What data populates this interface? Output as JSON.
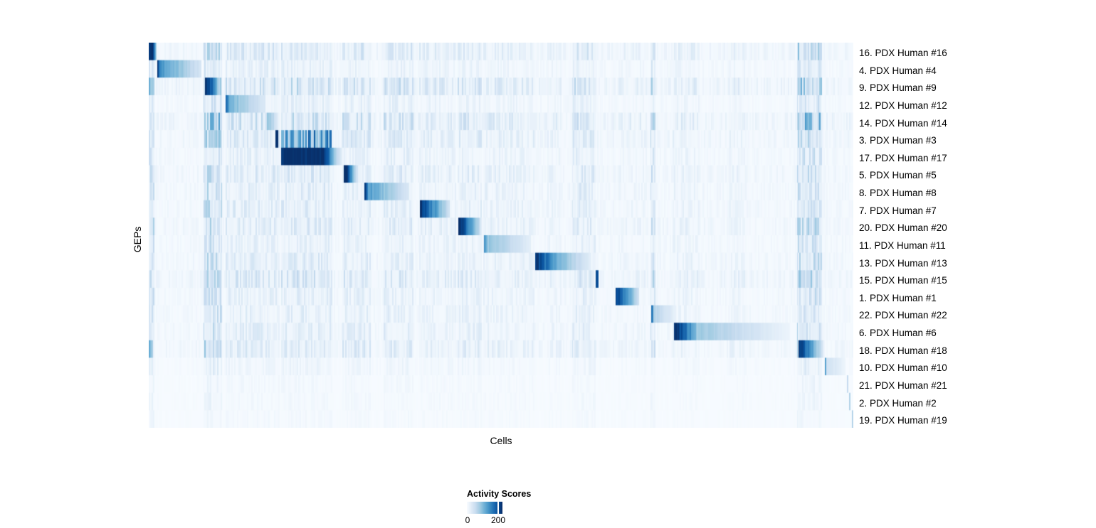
{
  "axes": {
    "y_label": "GEPs",
    "x_label": "Cells"
  },
  "colors": {
    "page_background": "#ffffff",
    "text": "#000000",
    "heatmap_max": "#08306b",
    "colormap": [
      "#f7fbff",
      "#deebf7",
      "#c6dbef",
      "#9ecae1",
      "#6baed6",
      "#4292c6",
      "#2171b5",
      "#08519c",
      "#08306b"
    ]
  },
  "chart_data": {
    "type": "heatmap",
    "title": "",
    "xlabel": "Cells",
    "ylabel": "GEPs",
    "value_name": "Activity Scores",
    "value_range": [
      0,
      230
    ],
    "grid": false,
    "extent": {
      "cols": 990,
      "rows": 22
    },
    "base_intensity": 0.045,
    "legend": {
      "title": "Activity Scores",
      "position": "bottom",
      "tick_labels": [
        "0",
        "200"
      ],
      "tick_positions": [
        0,
        0.88
      ],
      "tick_values": [
        0,
        200
      ]
    },
    "bands": [
      [
        0,
        8,
        0.28
      ],
      [
        77,
        103,
        0.3
      ],
      [
        108,
        184,
        0.15
      ],
      [
        186,
        258,
        0.17
      ],
      [
        272,
        312,
        0.15
      ],
      [
        330,
        372,
        0.15
      ],
      [
        380,
        432,
        0.11
      ],
      [
        434,
        468,
        0.13
      ],
      [
        470,
        542,
        0.1
      ],
      [
        560,
        580,
        0.08
      ],
      [
        595,
        628,
        0.15
      ],
      [
        660,
        700,
        0.07
      ],
      [
        705,
        712,
        0.22
      ],
      [
        736,
        774,
        0.09
      ],
      [
        815,
        840,
        0.08
      ],
      [
        911,
        946,
        0.3
      ]
    ],
    "rows": [
      {
        "label": "16. PDX Human #16",
        "noise": 0.8,
        "segments": [
          [
            0,
            5,
            1,
            1,
            "solid"
          ],
          [
            5,
            11,
            1,
            0.2,
            "fade"
          ]
        ]
      },
      {
        "label": "4. PDX Human #4",
        "noise": 0.45,
        "segments": [
          [
            12,
            16,
            0.95,
            0.65,
            "fade"
          ],
          [
            16,
            74,
            0.6,
            0.16,
            "fade"
          ]
        ]
      },
      {
        "label": "9. PDX Human #9",
        "noise": 1.0,
        "segments": [
          [
            0,
            6,
            0.5,
            0.2,
            "fade"
          ],
          [
            79,
            89,
            0.95,
            0.75,
            "fade"
          ],
          [
            89,
            101,
            0.75,
            0.18,
            "fade"
          ]
        ]
      },
      {
        "label": "12. PDX Human #12",
        "noise": 0.45,
        "segments": [
          [
            108,
            113,
            0.75,
            0.5,
            "fade"
          ],
          [
            113,
            164,
            0.48,
            0.13,
            "fade"
          ]
        ]
      },
      {
        "label": "14. PDX Human #14",
        "noise": 1.0,
        "segments": [
          [
            166,
            172,
            0.45,
            0.3,
            "fade"
          ],
          [
            172,
            182,
            0.3,
            0.1,
            "fade"
          ]
        ]
      },
      {
        "label": "3. PDX Human #3",
        "noise": 0.75,
        "segments": [
          [
            178,
            182,
            1,
            1,
            "solid"
          ],
          [
            186,
            257,
            0.85,
            0.2,
            "stripes"
          ]
        ]
      },
      {
        "label": "17. PDX Human #17",
        "noise": 0.5,
        "segments": [
          [
            186,
            247,
            1,
            1,
            "solid"
          ],
          [
            247,
            263,
            1,
            0.3,
            "fade"
          ],
          [
            263,
            272,
            0.3,
            0.08,
            "fade"
          ]
        ]
      },
      {
        "label": "5. PDX Human #5",
        "noise": 0.7,
        "segments": [
          [
            274,
            280,
            1,
            0.85,
            "fade"
          ],
          [
            280,
            292,
            0.85,
            0.15,
            "fade"
          ]
        ]
      },
      {
        "label": "8. PDX Human #8",
        "noise": 0.6,
        "segments": [
          [
            303,
            308,
            0.95,
            0.7,
            "fade"
          ],
          [
            308,
            366,
            0.58,
            0.13,
            "fade"
          ]
        ]
      },
      {
        "label": "7. PDX Human #7",
        "noise": 0.6,
        "segments": [
          [
            381,
            388,
            1,
            0.85,
            "fade"
          ],
          [
            388,
            423,
            0.85,
            0.18,
            "fade"
          ]
        ]
      },
      {
        "label": "20. PDX Human #20",
        "noise": 0.65,
        "segments": [
          [
            435,
            442,
            1,
            0.88,
            "fade"
          ],
          [
            442,
            466,
            0.88,
            0.2,
            "fade"
          ]
        ]
      },
      {
        "label": "11. PDX Human #11",
        "noise": 0.5,
        "segments": [
          [
            471,
            476,
            0.6,
            0.42,
            "fade"
          ],
          [
            476,
            537,
            0.4,
            0.1,
            "fade"
          ]
        ]
      },
      {
        "label": "13. PDX Human #13",
        "noise": 0.6,
        "segments": [
          [
            543,
            552,
            1,
            0.88,
            "fade"
          ],
          [
            552,
            577,
            0.85,
            0.45,
            "fade"
          ],
          [
            577,
            621,
            0.45,
            0.1,
            "fade"
          ]
        ]
      },
      {
        "label": "15. PDX Human #15",
        "noise": 0.8,
        "segments": [
          [
            628,
            632,
            1,
            0.85,
            "fade"
          ]
        ]
      },
      {
        "label": "1. PDX Human #1",
        "noise": 0.5,
        "segments": [
          [
            656,
            662,
            1,
            0.82,
            "fade"
          ],
          [
            662,
            689,
            0.82,
            0.18,
            "fade"
          ]
        ]
      },
      {
        "label": "22. PDX Human #22",
        "noise": 0.5,
        "segments": [
          [
            706,
            709,
            0.8,
            0.65,
            "fade"
          ],
          [
            709,
            741,
            0.3,
            0.07,
            "fade"
          ]
        ]
      },
      {
        "label": "6. PDX Human #6",
        "noise": 0.55,
        "segments": [
          [
            738,
            745,
            1,
            1,
            "solid"
          ],
          [
            745,
            769,
            0.95,
            0.45,
            "fade"
          ],
          [
            769,
            901,
            0.38,
            0.05,
            "fade"
          ]
        ]
      },
      {
        "label": "18. PDX Human #18",
        "noise": 0.7,
        "segments": [
          [
            0,
            6,
            0.5,
            0.28,
            "fade"
          ],
          [
            913,
            920,
            1,
            0.88,
            "fade"
          ],
          [
            920,
            948,
            0.85,
            0.12,
            "fade"
          ]
        ]
      },
      {
        "label": "10. PDX Human #10",
        "noise": 0.25,
        "segments": [
          [
            950,
            952,
            0.55,
            0.5,
            "solid"
          ],
          [
            952,
            979,
            0.2,
            0.05,
            "fade"
          ]
        ]
      },
      {
        "label": "21. PDX Human #21",
        "noise": 0.15,
        "segments": [
          [
            981,
            983,
            0.25,
            0.22,
            "solid"
          ]
        ]
      },
      {
        "label": "2. PDX Human #2",
        "noise": 0.15,
        "segments": [
          [
            984,
            986,
            0.3,
            0.25,
            "solid"
          ]
        ]
      },
      {
        "label": "19. PDX Human #19",
        "noise": 0.12,
        "segments": [
          [
            988,
            990,
            0.3,
            0.25,
            "solid"
          ]
        ]
      }
    ]
  }
}
